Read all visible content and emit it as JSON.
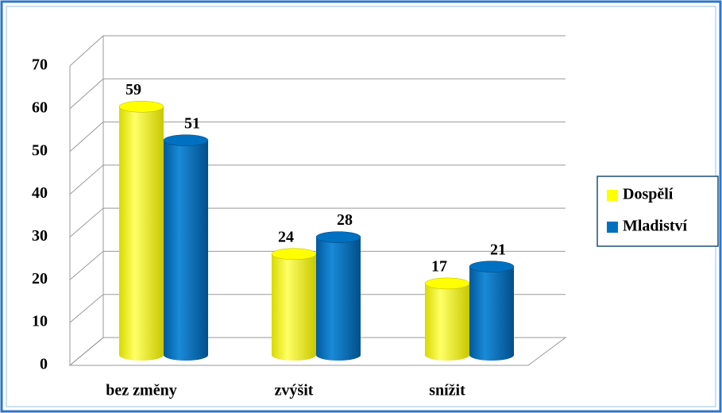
{
  "chart_data": {
    "type": "bar3d",
    "categories": [
      "bez změny",
      "zvýšit",
      "snížit"
    ],
    "series": [
      {
        "name": "Dospělí",
        "color": "#ffff00",
        "values": [
          59,
          24,
          17
        ]
      },
      {
        "name": "Mladiství",
        "color": "#0070c0",
        "values": [
          51,
          28,
          21
        ]
      }
    ],
    "ylim": [
      0,
      70
    ],
    "yticks": [
      0,
      10,
      20,
      30,
      40,
      50,
      60,
      70
    ],
    "grid": true,
    "legend": "right"
  }
}
